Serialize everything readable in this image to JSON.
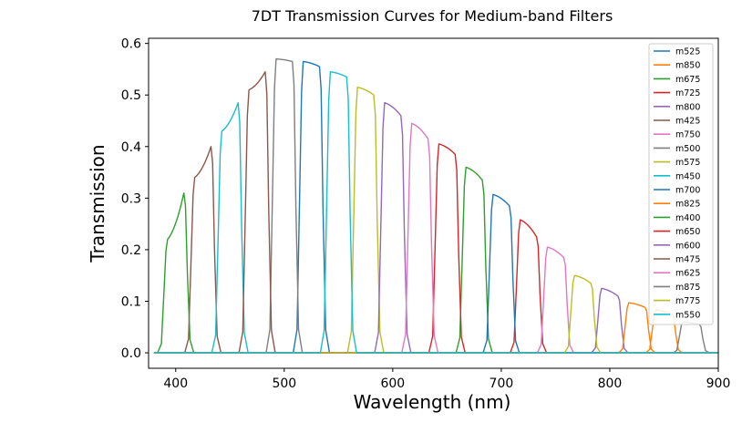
{
  "chart_data": {
    "type": "line",
    "title": "7DT Transmission Curves for Medium-band Filters",
    "xlabel": "Wavelength (nm)",
    "ylabel": "Transmission",
    "xlim": [
      375,
      900
    ],
    "ylim": [
      -0.03,
      0.61
    ],
    "xticks": [
      400,
      500,
      600,
      700,
      800,
      900
    ],
    "yticks": [
      0.0,
      0.1,
      0.2,
      0.3,
      0.4,
      0.5,
      0.6
    ],
    "xtick_labels": [
      "400",
      "500",
      "600",
      "700",
      "800",
      "900"
    ],
    "ytick_labels": [
      "0.0",
      "0.1",
      "0.2",
      "0.3",
      "0.4",
      "0.5",
      "0.6"
    ],
    "grid": false,
    "legend_position": "top-right",
    "legend": [
      "m525",
      "m850",
      "m675",
      "m725",
      "m800",
      "m425",
      "m750",
      "m500",
      "m575",
      "m450",
      "m700",
      "m825",
      "m400",
      "m650",
      "m600",
      "m475",
      "m625",
      "m875",
      "m775",
      "m550"
    ],
    "series": [
      {
        "name": "m525",
        "color": "#1f77b4",
        "center": 525,
        "left_peak": 0.565,
        "right_peak": 0.555
      },
      {
        "name": "m850",
        "color": "#ff7f0e",
        "center": 850,
        "left_peak": 0.083,
        "right_peak": 0.075
      },
      {
        "name": "m675",
        "color": "#2ca02c",
        "center": 675,
        "left_peak": 0.36,
        "right_peak": 0.335
      },
      {
        "name": "m725",
        "color": "#d62728",
        "center": 725,
        "left_peak": 0.258,
        "right_peak": 0.225
      },
      {
        "name": "m800",
        "color": "#9467bd",
        "center": 800,
        "left_peak": 0.125,
        "right_peak": 0.11
      },
      {
        "name": "m425",
        "color": "#8c564b",
        "center": 425,
        "left_peak": 0.34,
        "right_peak": 0.4
      },
      {
        "name": "m750",
        "color": "#e377c2",
        "center": 750,
        "left_peak": 0.205,
        "right_peak": 0.185
      },
      {
        "name": "m500",
        "color": "#7f7f7f",
        "center": 500,
        "left_peak": 0.57,
        "right_peak": 0.565
      },
      {
        "name": "m575",
        "color": "#bcbd22",
        "center": 575,
        "left_peak": 0.515,
        "right_peak": 0.5
      },
      {
        "name": "m450",
        "color": "#17becf",
        "center": 450,
        "left_peak": 0.43,
        "right_peak": 0.485
      },
      {
        "name": "m700",
        "color": "#1f77b4",
        "center": 700,
        "left_peak": 0.307,
        "right_peak": 0.285
      },
      {
        "name": "m825",
        "color": "#ff7f0e",
        "center": 825,
        "left_peak": 0.097,
        "right_peak": 0.088
      },
      {
        "name": "m400",
        "color": "#2ca02c",
        "center": 400,
        "left_peak": 0.22,
        "right_peak": 0.31
      },
      {
        "name": "m650",
        "color": "#d62728",
        "center": 650,
        "left_peak": 0.405,
        "right_peak": 0.385
      },
      {
        "name": "m600",
        "color": "#9467bd",
        "center": 600,
        "left_peak": 0.485,
        "right_peak": 0.46
      },
      {
        "name": "m475",
        "color": "#8c564b",
        "center": 475,
        "left_peak": 0.51,
        "right_peak": 0.545
      },
      {
        "name": "m625",
        "color": "#e377c2",
        "center": 625,
        "left_peak": 0.445,
        "right_peak": 0.415
      },
      {
        "name": "m875",
        "color": "#7f7f7f",
        "center": 875,
        "left_peak": 0.06,
        "right_peak": 0.055
      },
      {
        "name": "m775",
        "color": "#bcbd22",
        "center": 775,
        "left_peak": 0.15,
        "right_peak": 0.135
      },
      {
        "name": "m550",
        "color": "#17becf",
        "center": 550,
        "left_peak": 0.545,
        "right_peak": 0.535
      }
    ],
    "flat_x_range": [
      380,
      900
    ]
  }
}
